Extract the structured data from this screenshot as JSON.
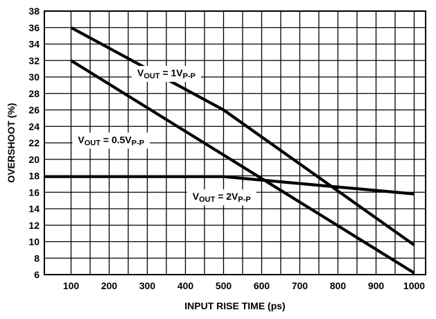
{
  "chart_data": {
    "type": "line",
    "title": "",
    "xlabel": "INPUT RISE TIME (ps)",
    "ylabel": "OVERSHOOT (%)",
    "xlim": [
      30,
      1030
    ],
    "ylim": [
      6,
      38
    ],
    "x_ticks": [
      100,
      200,
      300,
      400,
      500,
      600,
      700,
      800,
      900,
      1000
    ],
    "y_ticks": [
      6,
      8,
      10,
      12,
      14,
      16,
      18,
      20,
      22,
      24,
      26,
      28,
      30,
      32,
      34,
      36,
      38
    ],
    "x_grid": [
      30,
      100,
      150,
      200,
      250,
      300,
      350,
      400,
      450,
      500,
      550,
      600,
      650,
      700,
      750,
      800,
      850,
      900,
      950,
      1000,
      1030
    ],
    "grid": true,
    "legend": "none",
    "series": [
      {
        "label_main": "V",
        "label_sub1": "OUT",
        "label_mid": " = 1V",
        "label_sub2": "P-P",
        "label_pos": [
          350,
          30.5
        ],
        "points": [
          [
            100,
            36
          ],
          [
            500,
            26
          ],
          [
            1000,
            9.6
          ]
        ]
      },
      {
        "label_main": "V",
        "label_sub1": "OUT",
        "label_mid": " = 0.5V",
        "label_sub2": "P-P",
        "label_pos": [
          205,
          22.4
        ],
        "points": [
          [
            100,
            32
          ],
          [
            1000,
            6.2
          ]
        ]
      },
      {
        "label_main": "V",
        "label_sub1": "OUT",
        "label_mid": " = 2V",
        "label_sub2": "P-P",
        "label_pos": [
          495,
          15.5
        ],
        "points": [
          [
            30,
            17.9
          ],
          [
            500,
            17.9
          ],
          [
            1000,
            15.8
          ]
        ]
      }
    ]
  }
}
